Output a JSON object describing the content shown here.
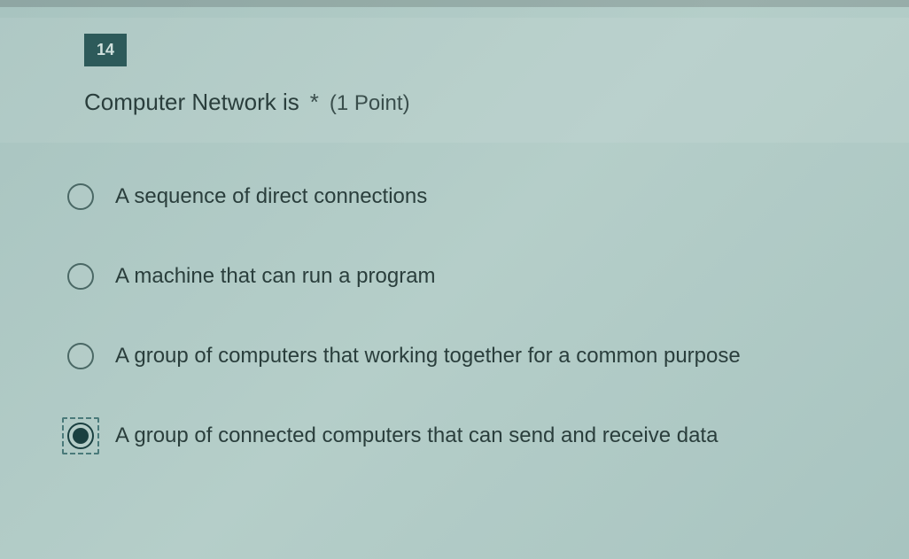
{
  "question": {
    "number": "14",
    "text": "Computer Network is",
    "required_mark": "*",
    "points_label": "(1 Point)"
  },
  "options": [
    {
      "label": "A sequence of direct connections",
      "selected": false,
      "focused": false
    },
    {
      "label": "A machine that can run a program",
      "selected": false,
      "focused": false
    },
    {
      "label": "A group of computers that working together for a common purpose",
      "selected": false,
      "focused": false
    },
    {
      "label": "A group of connected computers that can send and receive data",
      "selected": true,
      "focused": true
    }
  ],
  "colors": {
    "badge_bg": "#2d5a5a",
    "badge_text": "#d0e0dd",
    "text_primary": "#2a3e3c",
    "radio_border": "#4a6865",
    "radio_fill": "#1a4040",
    "focus_border": "#4a7a7a",
    "page_bg": "#a8c4c0"
  },
  "typography": {
    "question_fontsize": 26,
    "option_fontsize": 24,
    "badge_fontsize": 18
  }
}
